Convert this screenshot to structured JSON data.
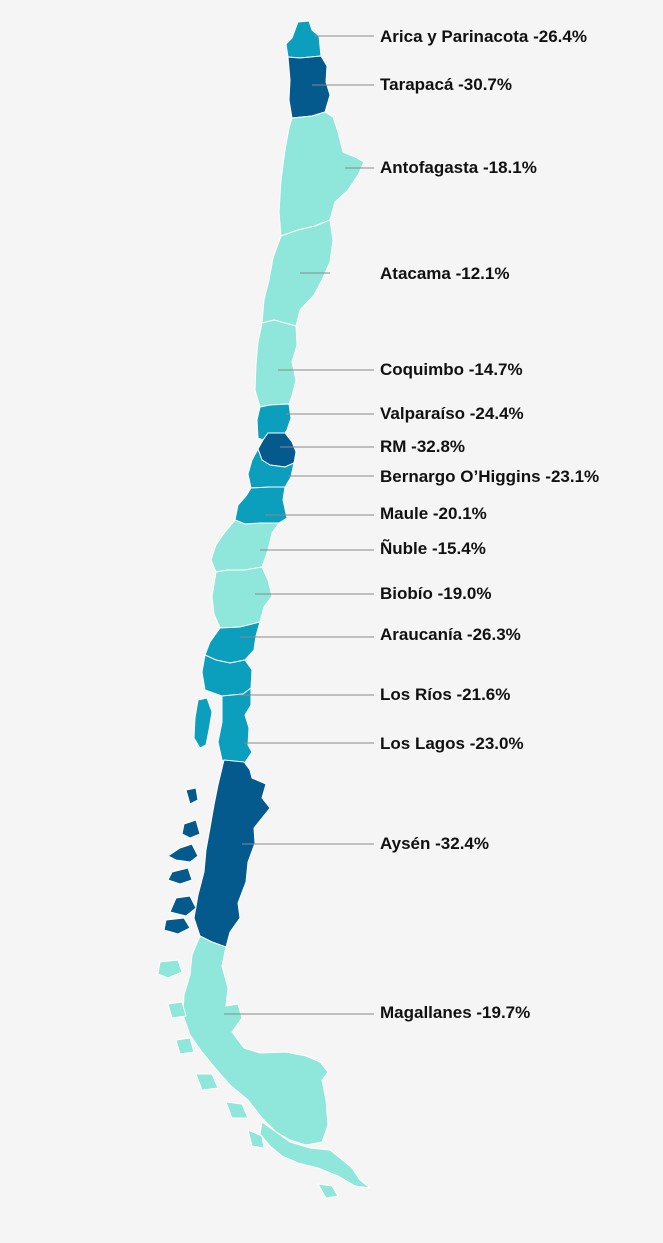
{
  "palette": {
    "light": "#8fe6da",
    "medium": "#0b9fbd",
    "dark": "#045a8d",
    "leader_line": "#8a8a8a",
    "background": "#f5f5f5"
  },
  "regions": [
    {
      "id": "arica",
      "label": "Arica y Parinacota -26.4%",
      "change_pct": -26.4,
      "shade": "medium"
    },
    {
      "id": "tarapaca",
      "label": "Tarapacá -30.7%",
      "change_pct": -30.7,
      "shade": "dark"
    },
    {
      "id": "antofagasta",
      "label": "Antofagasta -18.1%",
      "change_pct": -18.1,
      "shade": "light"
    },
    {
      "id": "atacama",
      "label": "Atacama -12.1%",
      "change_pct": -12.1,
      "shade": "light"
    },
    {
      "id": "coquimbo",
      "label": "Coquimbo -14.7%",
      "change_pct": -14.7,
      "shade": "light"
    },
    {
      "id": "valparaiso",
      "label": "Valparaíso -24.4%",
      "change_pct": -24.4,
      "shade": "medium"
    },
    {
      "id": "rm",
      "label": "RM -32.8%",
      "change_pct": -32.8,
      "shade": "dark"
    },
    {
      "id": "ohiggins",
      "label": "Bernargo O’Higgins -23.1%",
      "change_pct": -23.1,
      "shade": "medium"
    },
    {
      "id": "maule",
      "label": "Maule -20.1%",
      "change_pct": -20.1,
      "shade": "medium"
    },
    {
      "id": "nuble",
      "label": "Ñuble -15.4%",
      "change_pct": -15.4,
      "shade": "light"
    },
    {
      "id": "biobio",
      "label": "Biobío -19.0%",
      "change_pct": -19.0,
      "shade": "light"
    },
    {
      "id": "araucania",
      "label": "Araucanía -26.3%",
      "change_pct": -26.3,
      "shade": "medium"
    },
    {
      "id": "losrios",
      "label": "Los Ríos -21.6%",
      "change_pct": -21.6,
      "shade": "medium"
    },
    {
      "id": "loslagos",
      "label": "Los Lagos -23.0%",
      "change_pct": -23.0,
      "shade": "medium"
    },
    {
      "id": "aysen",
      "label": "Aysén -32.4%",
      "change_pct": -32.4,
      "shade": "dark"
    },
    {
      "id": "magallanes",
      "label": "Magallanes -19.7%",
      "change_pct": -19.7,
      "shade": "light"
    }
  ]
}
